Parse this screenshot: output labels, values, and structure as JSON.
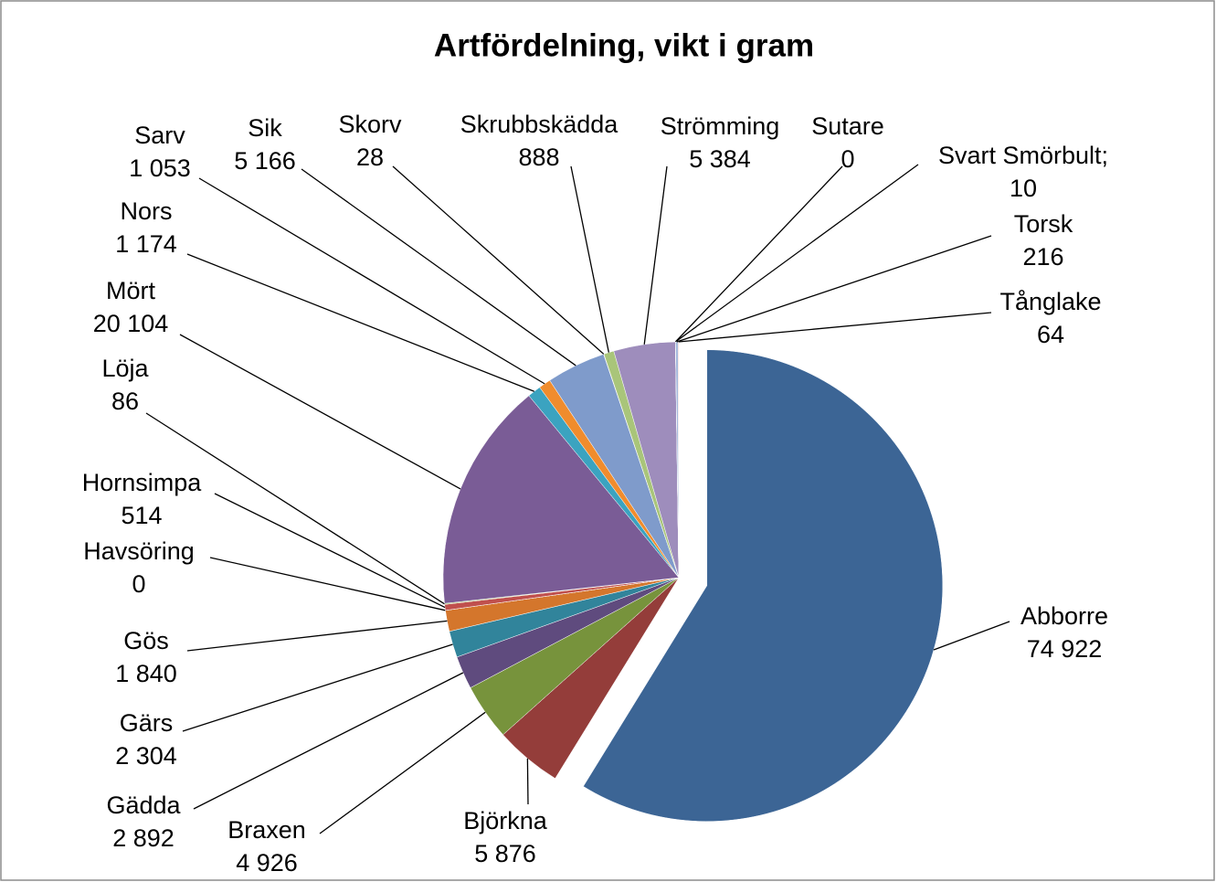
{
  "chart_data": {
    "type": "pie",
    "title": "Artfördelning, vikt i gram",
    "categories": [
      "Abborre",
      "Björkna",
      "Braxen",
      "Gädda",
      "Gärs",
      "Gös",
      "Havsöring",
      "Hornsimpa",
      "Löja",
      "Mört",
      "Nors",
      "Sarv",
      "Sik",
      "Skorv",
      "Skrubbskädda",
      "Strömming",
      "Sutare",
      "Svart Smörbult;",
      "Torsk",
      "Tånglake"
    ],
    "values": [
      74922,
      5876,
      4926,
      2892,
      2304,
      1840,
      0,
      514,
      86,
      20104,
      1174,
      1053,
      5166,
      28,
      888,
      5384,
      0,
      10,
      216,
      64
    ],
    "value_labels": [
      "74 922",
      "5 876",
      "4 926",
      "2 892",
      "2 304",
      "1 840",
      "0",
      "514",
      "86",
      "20 104",
      "1 174",
      "1 053",
      "5 166",
      "28",
      "888",
      "5 384",
      "0",
      "10",
      "216",
      "64"
    ],
    "colors": [
      "#3c6595",
      "#943d3a",
      "#77933c",
      "#5f4b7e",
      "#31849b",
      "#d4762c",
      "#4a7fbf",
      "#c0504d",
      "#9bbb59",
      "#7a5c96",
      "#3ba3c0",
      "#f08c2d",
      "#7f9bcb",
      "#c96a68",
      "#a9c57a",
      "#9e8dbc",
      "#5fb8cc",
      "#f5a866",
      "#a4b9dd",
      "#d9a5a4"
    ]
  }
}
